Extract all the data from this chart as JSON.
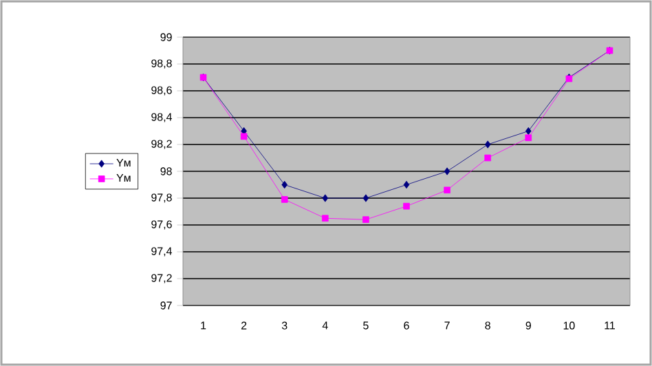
{
  "chart_data": {
    "type": "line",
    "categories": [
      "1",
      "2",
      "3",
      "4",
      "5",
      "6",
      "7",
      "8",
      "9",
      "10",
      "11"
    ],
    "series": [
      {
        "name": "Yм",
        "color": "#000080",
        "marker": "diamond",
        "values": [
          98.7,
          98.3,
          97.9,
          97.8,
          97.8,
          97.9,
          98.0,
          98.2,
          98.3,
          98.7,
          98.9
        ]
      },
      {
        "name": "Yм",
        "color": "#ff00ff",
        "marker": "square",
        "values": [
          98.7,
          98.26,
          97.79,
          97.65,
          97.64,
          97.74,
          97.86,
          98.1,
          98.25,
          98.69,
          98.9
        ]
      }
    ],
    "ylim": [
      97,
      99
    ],
    "yticks": [
      {
        "value": 97,
        "label": "97"
      },
      {
        "value": 97.2,
        "label": "97,2"
      },
      {
        "value": 97.4,
        "label": "97,4"
      },
      {
        "value": 97.6,
        "label": "97,6"
      },
      {
        "value": 97.8,
        "label": "97,8"
      },
      {
        "value": 98,
        "label": "98"
      },
      {
        "value": 98.2,
        "label": "98,2"
      },
      {
        "value": 98.4,
        "label": "98,4"
      },
      {
        "value": 98.6,
        "label": "98,6"
      },
      {
        "value": 98.8,
        "label": "98,8"
      },
      {
        "value": 99,
        "label": "99"
      }
    ],
    "grid": "y",
    "legend": "left",
    "line_style": "solid"
  }
}
